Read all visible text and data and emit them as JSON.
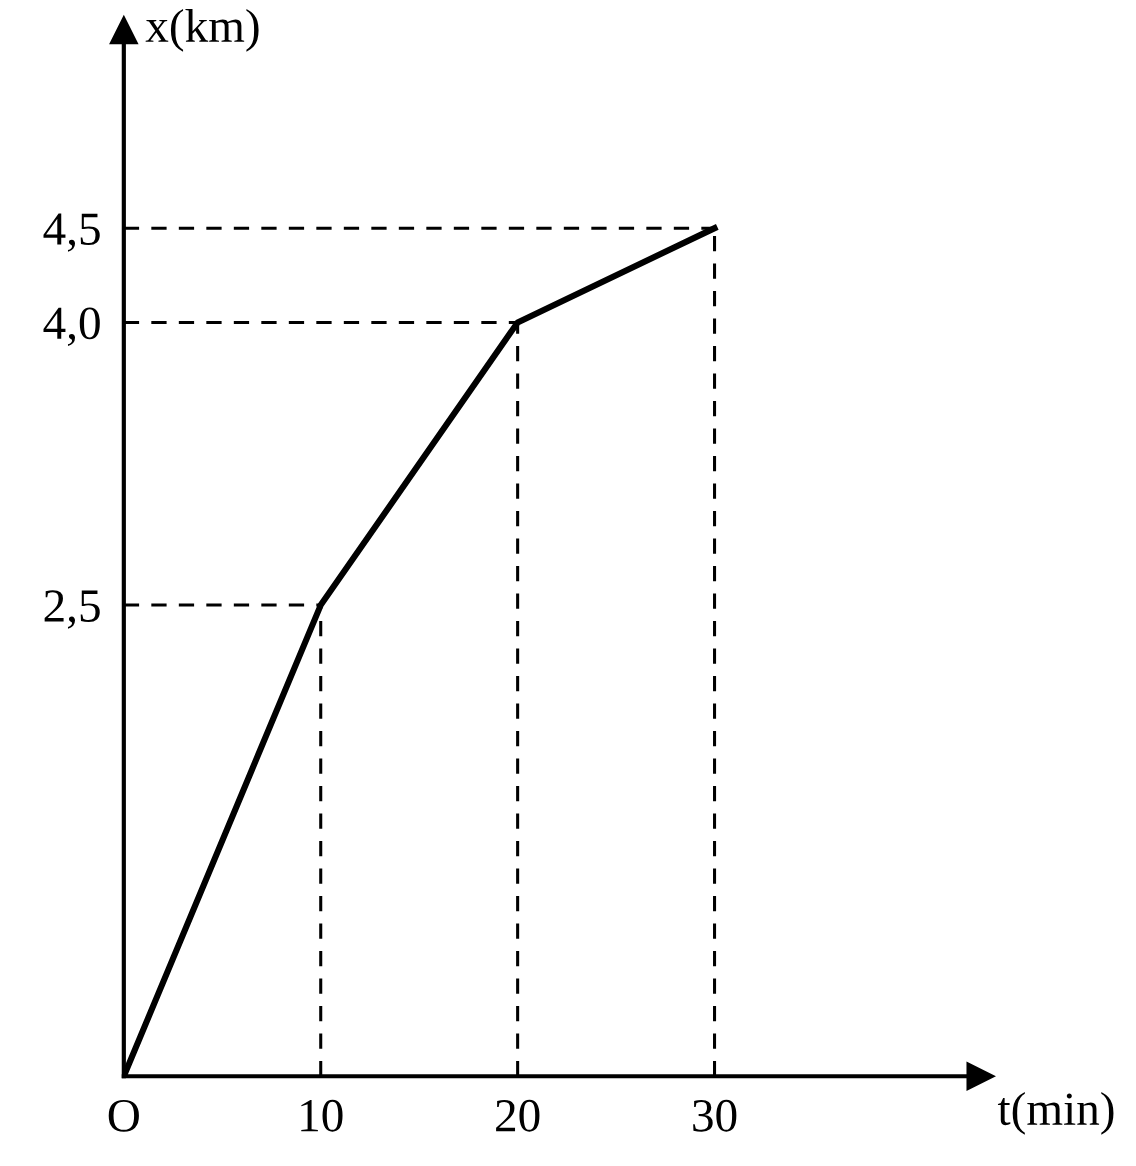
{
  "chart_data": {
    "type": "line",
    "xlabel": "t(min)",
    "ylabel": "x(km)",
    "x": [
      0,
      10,
      20,
      30
    ],
    "series": [
      {
        "color": "#000000",
        "values": [
          0,
          2.5,
          4.0,
          4.5
        ]
      },
      {
        "color": "#000000",
        "x": [
          10,
          10
        ],
        "values": [
          0,
          2.5
        ],
        "line_style": "dashed"
      },
      {
        "color": "#000000",
        "x": [
          0,
          10
        ],
        "values": [
          2.5,
          2.5
        ],
        "line_style": "dashed"
      },
      {
        "color": "#000000",
        "x": [
          20,
          20
        ],
        "values": [
          0,
          4.0
        ],
        "line_style": "dashed"
      },
      {
        "color": "#000000",
        "x": [
          0,
          20
        ],
        "values": [
          4.0,
          4.0
        ],
        "line_style": "dashed"
      },
      {
        "color": "#000000",
        "x": [
          30,
          30
        ],
        "values": [
          0,
          4.5
        ],
        "line_style": "dashed"
      },
      {
        "color": "#000000",
        "x": [
          0,
          30
        ],
        "values": [
          4.5,
          4.5
        ],
        "line_style": "dashed"
      }
    ],
    "xlim": [
      0,
      43.5
    ],
    "ylim": [
      0,
      5.55
    ],
    "xticks": [
      {
        "value": 0,
        "label": "O"
      },
      10,
      20,
      30
    ],
    "yticks": [
      {
        "value": 2.5,
        "label": "2,5"
      },
      {
        "value": 4.0,
        "label": "4,0"
      },
      {
        "value": 4.5,
        "label": "4,5"
      }
    ],
    "marker": "none",
    "line_style": "solid"
  }
}
